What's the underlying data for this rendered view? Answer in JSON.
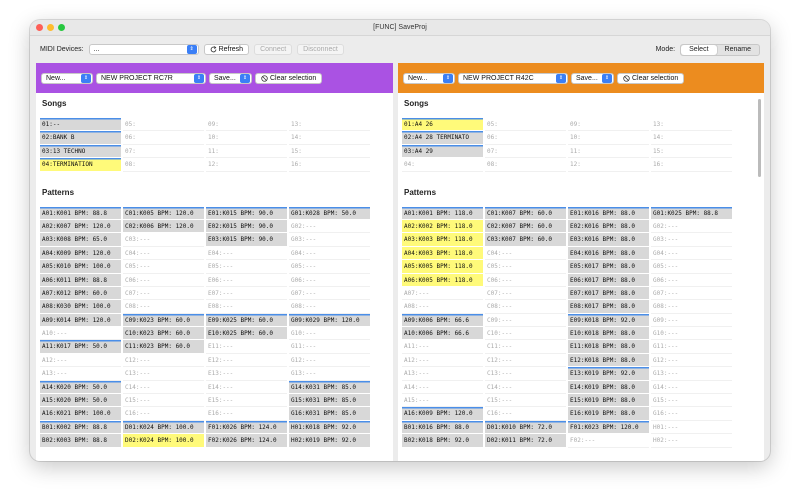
{
  "window": {
    "title": "[FUNC] SaveProj"
  },
  "toolbar": {
    "midi_label": "MIDI Devices:",
    "midi_value": "...",
    "refresh_label": "Refresh",
    "connect_label": "Connect",
    "disconnect_label": "Disconnect",
    "mode_label": "Mode:",
    "mode_select_label": "Select",
    "mode_rename_label": "Rename",
    "mode_active": "Select"
  },
  "panels": [
    {
      "color": "#aa52e3",
      "new_label": "New...",
      "project_name": "NEW PROJECT RC7R",
      "save_label": "Save...",
      "clear_label": "Clear selection",
      "songs_title": "Songs",
      "patterns_title": "Patterns",
      "songs": [
        {
          "text": "01:--",
          "state": "full",
          "top": true
        },
        {
          "text": "05:",
          "state": "empty"
        },
        {
          "text": "09:",
          "state": "empty"
        },
        {
          "text": "13:",
          "state": "empty"
        },
        {
          "text": "02:BANK B",
          "state": "full",
          "top": true
        },
        {
          "text": "06:",
          "state": "empty"
        },
        {
          "text": "10:",
          "state": "empty"
        },
        {
          "text": "14:",
          "state": "empty"
        },
        {
          "text": "03:13 TECHNO",
          "state": "full",
          "top": true
        },
        {
          "text": "07:",
          "state": "empty"
        },
        {
          "text": "11:",
          "state": "empty"
        },
        {
          "text": "15:",
          "state": "empty"
        },
        {
          "text": "04:TERMINATION",
          "state": "hl",
          "top": true
        },
        {
          "text": "08:",
          "state": "empty"
        },
        {
          "text": "12:",
          "state": "empty"
        },
        {
          "text": "16:",
          "state": "empty"
        }
      ],
      "patterns": [
        {
          "text": "A01:K001 BPM:  88.8",
          "state": "full",
          "top": true
        },
        {
          "text": "C01:K005 BPM: 120.0",
          "state": "full",
          "top": true
        },
        {
          "text": "E01:K015 BPM:  90.0",
          "state": "full",
          "top": true
        },
        {
          "text": "G01:K028 BPM:  50.0",
          "state": "full",
          "top": true
        },
        {
          "text": "A02:K007 BPM: 120.0",
          "state": "full"
        },
        {
          "text": "C02:K006 BPM: 120.0",
          "state": "full"
        },
        {
          "text": "E02:K015 BPM:  90.0",
          "state": "full"
        },
        {
          "text": "G02:---",
          "state": "empty"
        },
        {
          "text": "A03:K008 BPM:  65.0",
          "state": "full"
        },
        {
          "text": "C03:---",
          "state": "empty"
        },
        {
          "text": "E03:K015 BPM:  90.0",
          "state": "full"
        },
        {
          "text": "G03:---",
          "state": "empty"
        },
        {
          "text": "A04:K009 BPM: 120.0",
          "state": "full"
        },
        {
          "text": "C04:---",
          "state": "empty"
        },
        {
          "text": "E04:---",
          "state": "empty"
        },
        {
          "text": "G04:---",
          "state": "empty"
        },
        {
          "text": "A05:K010 BPM: 100.0",
          "state": "full"
        },
        {
          "text": "C05:---",
          "state": "empty"
        },
        {
          "text": "E05:---",
          "state": "empty"
        },
        {
          "text": "G05:---",
          "state": "empty"
        },
        {
          "text": "A06:K011 BPM:  88.8",
          "state": "full"
        },
        {
          "text": "C06:---",
          "state": "empty"
        },
        {
          "text": "E06:---",
          "state": "empty"
        },
        {
          "text": "G06:---",
          "state": "empty"
        },
        {
          "text": "A07:K012 BPM:  60.0",
          "state": "full"
        },
        {
          "text": "C07:---",
          "state": "empty"
        },
        {
          "text": "E07:---",
          "state": "empty"
        },
        {
          "text": "G07:---",
          "state": "empty"
        },
        {
          "text": "A08:K030 BPM: 100.0",
          "state": "full"
        },
        {
          "text": "C08:---",
          "state": "empty"
        },
        {
          "text": "E08:---",
          "state": "empty"
        },
        {
          "text": "G08:---",
          "state": "empty"
        },
        {
          "text": "A09:K014 BPM: 120.0",
          "state": "full"
        },
        {
          "text": "C09:K023 BPM:  60.0",
          "state": "full",
          "top": true
        },
        {
          "text": "E09:K025 BPM:  60.0",
          "state": "full",
          "top": true
        },
        {
          "text": "G09:K029 BPM: 120.0",
          "state": "full",
          "top": true
        },
        {
          "text": "A10:---",
          "state": "empty"
        },
        {
          "text": "C10:K023 BPM:  60.0",
          "state": "full"
        },
        {
          "text": "E10:K025 BPM:  60.0",
          "state": "full"
        },
        {
          "text": "G10:---",
          "state": "empty"
        },
        {
          "text": "A11:K017 BPM:  50.0",
          "state": "full",
          "top": true
        },
        {
          "text": "C11:K023 BPM:  60.0",
          "state": "full"
        },
        {
          "text": "E11:---",
          "state": "empty"
        },
        {
          "text": "G11:---",
          "state": "empty"
        },
        {
          "text": "A12:---",
          "state": "empty"
        },
        {
          "text": "C12:---",
          "state": "empty"
        },
        {
          "text": "E12:---",
          "state": "empty"
        },
        {
          "text": "G12:---",
          "state": "empty"
        },
        {
          "text": "A13:---",
          "state": "empty"
        },
        {
          "text": "C13:---",
          "state": "empty"
        },
        {
          "text": "E13:---",
          "state": "empty"
        },
        {
          "text": "G13:---",
          "state": "empty"
        },
        {
          "text": "A14:K020 BPM:  50.0",
          "state": "full",
          "top": true
        },
        {
          "text": "C14:---",
          "state": "empty"
        },
        {
          "text": "E14:---",
          "state": "empty"
        },
        {
          "text": "G14:K031 BPM:  85.0",
          "state": "full",
          "top": true
        },
        {
          "text": "A15:K020 BPM:  50.0",
          "state": "full"
        },
        {
          "text": "C15:---",
          "state": "empty"
        },
        {
          "text": "E15:---",
          "state": "empty"
        },
        {
          "text": "G15:K031 BPM:  85.0",
          "state": "full"
        },
        {
          "text": "A16:K021 BPM: 100.0",
          "state": "full"
        },
        {
          "text": "C16:---",
          "state": "empty"
        },
        {
          "text": "E16:---",
          "state": "empty"
        },
        {
          "text": "G16:K031 BPM:  85.0",
          "state": "full"
        },
        {
          "text": "B01:K002 BPM:  88.8",
          "state": "full",
          "top": true
        },
        {
          "text": "D01:K024 BPM: 100.0",
          "state": "full",
          "top": true
        },
        {
          "text": "F01:K026 BPM: 124.0",
          "state": "full",
          "top": true
        },
        {
          "text": "H01:K018 BPM:  92.0",
          "state": "full",
          "top": true
        },
        {
          "text": "B02:K003 BPM:  88.8",
          "state": "full"
        },
        {
          "text": "D02:K024 BPM: 100.0",
          "state": "hl"
        },
        {
          "text": "F02:K026 BPM: 124.0",
          "state": "full"
        },
        {
          "text": "H02:K019 BPM:  92.0",
          "state": "full"
        }
      ]
    },
    {
      "color": "#ec8c1f",
      "new_label": "New...",
      "project_name": "NEW PROJECT R42C",
      "save_label": "Save...",
      "clear_label": "Clear selection",
      "songs_title": "Songs",
      "patterns_title": "Patterns",
      "songs": [
        {
          "text": "01:A4 26",
          "state": "hl",
          "top": true
        },
        {
          "text": "05:",
          "state": "empty"
        },
        {
          "text": "09:",
          "state": "empty"
        },
        {
          "text": "13:",
          "state": "empty"
        },
        {
          "text": "02:A4 28 TERMINATO",
          "state": "full",
          "top": true
        },
        {
          "text": "06:",
          "state": "empty"
        },
        {
          "text": "10:",
          "state": "empty"
        },
        {
          "text": "14:",
          "state": "empty"
        },
        {
          "text": "03:A4 29",
          "state": "full",
          "top": true
        },
        {
          "text": "07:",
          "state": "empty"
        },
        {
          "text": "11:",
          "state": "empty"
        },
        {
          "text": "15:",
          "state": "empty"
        },
        {
          "text": "04:",
          "state": "empty"
        },
        {
          "text": "08:",
          "state": "empty"
        },
        {
          "text": "12:",
          "state": "empty"
        },
        {
          "text": "16:",
          "state": "empty"
        }
      ],
      "patterns": [
        {
          "text": "A01:K001 BPM: 118.0",
          "state": "full",
          "top": true
        },
        {
          "text": "C01:K007 BPM:  60.0",
          "state": "full",
          "top": true
        },
        {
          "text": "E01:K016 BPM:  88.0",
          "state": "full",
          "top": true
        },
        {
          "text": "G01:K025 BPM:  88.8",
          "state": "full",
          "top": true
        },
        {
          "text": "A02:K002 BPM: 118.0",
          "state": "hl"
        },
        {
          "text": "C02:K007 BPM:  60.0",
          "state": "full"
        },
        {
          "text": "E02:K016 BPM:  88.0",
          "state": "full"
        },
        {
          "text": "G02:---",
          "state": "empty"
        },
        {
          "text": "A03:K003 BPM: 118.0",
          "state": "hl"
        },
        {
          "text": "C03:K007 BPM:  60.0",
          "state": "full"
        },
        {
          "text": "E03:K016 BPM:  88.0",
          "state": "full"
        },
        {
          "text": "G03:---",
          "state": "empty"
        },
        {
          "text": "A04:K003 BPM: 118.0",
          "state": "hl"
        },
        {
          "text": "C04:---",
          "state": "empty"
        },
        {
          "text": "E04:K016 BPM:  88.0",
          "state": "full"
        },
        {
          "text": "G04:---",
          "state": "empty"
        },
        {
          "text": "A05:K005 BPM: 118.0",
          "state": "hl"
        },
        {
          "text": "C05:---",
          "state": "empty"
        },
        {
          "text": "E05:K017 BPM:  88.0",
          "state": "full"
        },
        {
          "text": "G05:---",
          "state": "empty"
        },
        {
          "text": "A06:K005 BPM: 118.0",
          "state": "hl"
        },
        {
          "text": "C06:---",
          "state": "empty"
        },
        {
          "text": "E06:K017 BPM:  88.0",
          "state": "full"
        },
        {
          "text": "G06:---",
          "state": "empty"
        },
        {
          "text": "A07:---",
          "state": "empty"
        },
        {
          "text": "C07:---",
          "state": "empty"
        },
        {
          "text": "E07:K017 BPM:  88.0",
          "state": "full"
        },
        {
          "text": "G07:---",
          "state": "empty"
        },
        {
          "text": "A08:---",
          "state": "empty"
        },
        {
          "text": "C08:---",
          "state": "empty"
        },
        {
          "text": "E08:K017 BPM:  88.0",
          "state": "full"
        },
        {
          "text": "G08:---",
          "state": "empty"
        },
        {
          "text": "A09:K006 BPM:  66.6",
          "state": "full",
          "top": true
        },
        {
          "text": "C09:---",
          "state": "empty"
        },
        {
          "text": "E09:K018 BPM:  92.0",
          "state": "full",
          "top": true
        },
        {
          "text": "G09:---",
          "state": "empty"
        },
        {
          "text": "A10:K006 BPM:  66.6",
          "state": "full"
        },
        {
          "text": "C10:---",
          "state": "empty"
        },
        {
          "text": "E10:K018 BPM:  88.0",
          "state": "full"
        },
        {
          "text": "G10:---",
          "state": "empty"
        },
        {
          "text": "A11:---",
          "state": "empty"
        },
        {
          "text": "C11:---",
          "state": "empty"
        },
        {
          "text": "E11:K018 BPM:  88.0",
          "state": "full"
        },
        {
          "text": "G11:---",
          "state": "empty"
        },
        {
          "text": "A12:---",
          "state": "empty"
        },
        {
          "text": "C12:---",
          "state": "empty"
        },
        {
          "text": "E12:K018 BPM:  88.0",
          "state": "full"
        },
        {
          "text": "G12:---",
          "state": "empty"
        },
        {
          "text": "A13:---",
          "state": "empty"
        },
        {
          "text": "C13:---",
          "state": "empty"
        },
        {
          "text": "E13:K019 BPM:  92.0",
          "state": "full",
          "top": true
        },
        {
          "text": "G13:---",
          "state": "empty"
        },
        {
          "text": "A14:---",
          "state": "empty"
        },
        {
          "text": "C14:---",
          "state": "empty"
        },
        {
          "text": "E14:K019 BPM:  88.0",
          "state": "full"
        },
        {
          "text": "G14:---",
          "state": "empty"
        },
        {
          "text": "A15:---",
          "state": "empty"
        },
        {
          "text": "C15:---",
          "state": "empty"
        },
        {
          "text": "E15:K019 BPM:  88.0",
          "state": "full"
        },
        {
          "text": "G15:---",
          "state": "empty"
        },
        {
          "text": "A16:K009 BPM: 120.0",
          "state": "full",
          "top": true
        },
        {
          "text": "C16:---",
          "state": "empty"
        },
        {
          "text": "E16:K019 BPM:  88.0",
          "state": "full"
        },
        {
          "text": "G16:---",
          "state": "empty"
        },
        {
          "text": "B01:K016 BPM:  88.0",
          "state": "full",
          "top": true
        },
        {
          "text": "D01:K010 BPM:  72.0",
          "state": "full",
          "top": true
        },
        {
          "text": "F01:K023 BPM: 120.0",
          "state": "full",
          "top": true
        },
        {
          "text": "H01:---",
          "state": "empty"
        },
        {
          "text": "B02:K018 BPM:  92.0",
          "state": "full"
        },
        {
          "text": "D02:K011 BPM:  72.0",
          "state": "full"
        },
        {
          "text": "F02:---",
          "state": "empty"
        },
        {
          "text": "H02:---",
          "state": "empty"
        }
      ]
    }
  ]
}
